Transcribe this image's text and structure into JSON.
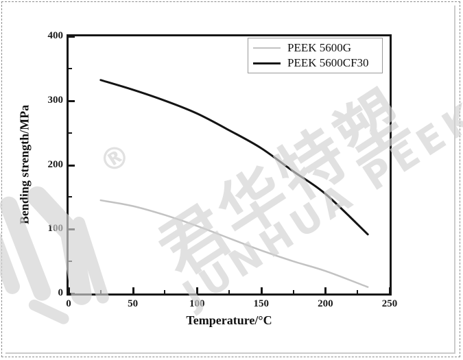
{
  "figure": {
    "watermark": {
      "registered": "®",
      "cn_text": "君华特塑",
      "en_text": "JUNHUA PEEK",
      "color": "#d2d2d2"
    },
    "frame_style": "dashed-gray-border"
  },
  "chart_data": {
    "type": "line",
    "title": "",
    "xlabel": "Temperature/°C",
    "ylabel": "Bending strength/MPa",
    "xlim": [
      0,
      250
    ],
    "ylim": [
      0,
      400
    ],
    "x_major_ticks": [
      0,
      50,
      100,
      150,
      200,
      250
    ],
    "x_minor_step": 25,
    "y_major_ticks": [
      0,
      100,
      200,
      300,
      400
    ],
    "y_minor_step": 50,
    "grid": false,
    "legend_position": "top-right",
    "axis_color": "#161616",
    "series": [
      {
        "name": "PEEK 5600G",
        "color": "#c2c2c2",
        "stroke_width": 2.5,
        "x": [
          25,
          50,
          75,
          100,
          125,
          150,
          175,
          200,
          233
        ],
        "y": [
          145,
          136,
          122,
          105,
          86,
          67,
          50,
          35,
          10
        ]
      },
      {
        "name": "PEEK 5600CF30",
        "color": "#141414",
        "stroke_width": 3,
        "x": [
          25,
          50,
          75,
          100,
          125,
          150,
          175,
          200,
          233
        ],
        "y": [
          332,
          317,
          300,
          280,
          254,
          226,
          190,
          155,
          92
        ]
      }
    ]
  }
}
